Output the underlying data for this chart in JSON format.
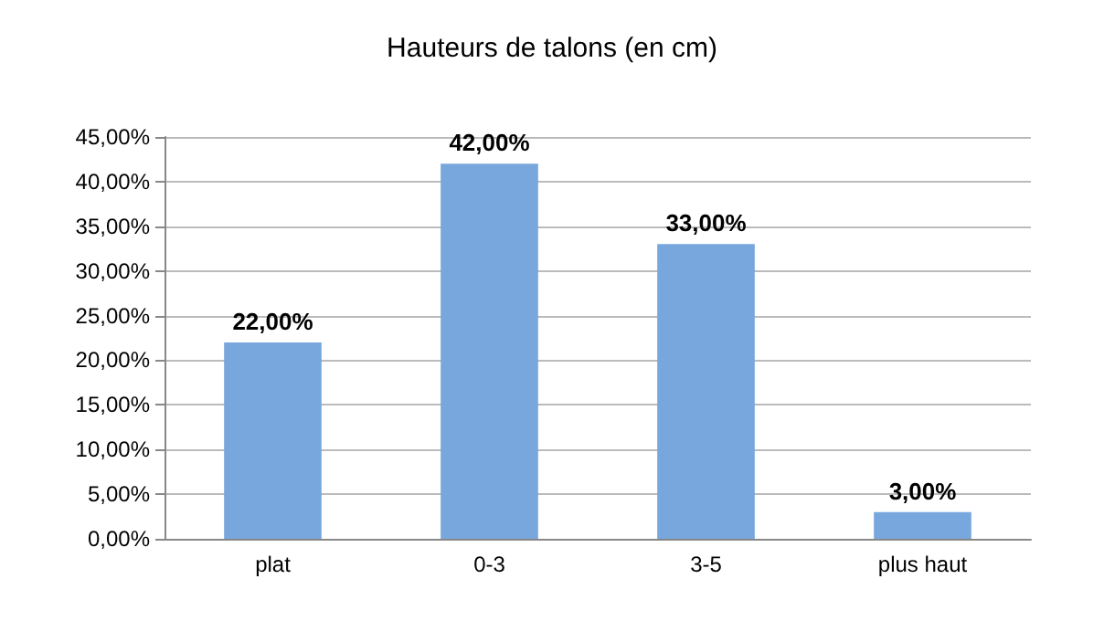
{
  "chart_data": {
    "type": "bar",
    "title": "Hauteurs de talons (en cm)",
    "categories": [
      "plat",
      "0-3",
      "3-5",
      "plus haut"
    ],
    "values": [
      22,
      42,
      33,
      3
    ],
    "value_labels": [
      "22,00%",
      "42,00%",
      "33,00%",
      "3,00%"
    ],
    "color": "#77a7dc",
    "ylim": [
      0,
      45
    ],
    "yticks": [
      {
        "value": 0,
        "label": "0,00%"
      },
      {
        "value": 5,
        "label": "5,00%"
      },
      {
        "value": 10,
        "label": "10,00%"
      },
      {
        "value": 15,
        "label": "15,00%"
      },
      {
        "value": 20,
        "label": "20,00%"
      },
      {
        "value": 25,
        "label": "25,00%"
      },
      {
        "value": 30,
        "label": "30,00%"
      },
      {
        "value": 35,
        "label": "35,00%"
      },
      {
        "value": 40,
        "label": "40,00%"
      },
      {
        "value": 45,
        "label": "45,00%"
      }
    ],
    "grid": true
  }
}
